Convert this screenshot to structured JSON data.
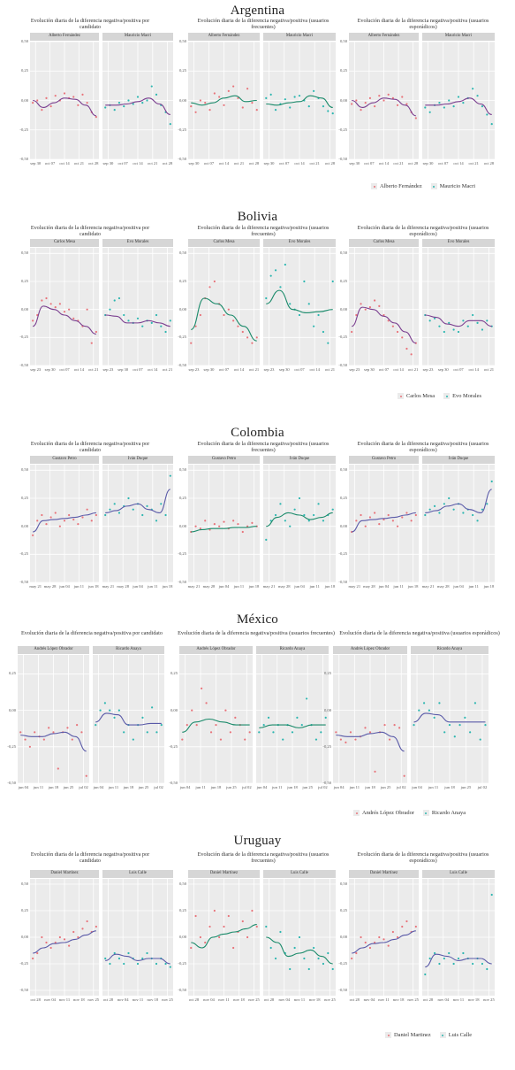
{
  "colors": {
    "red": "#e8737a",
    "teal": "#2cb6b0",
    "curve1": "#7a3e8f",
    "curve2": "#1a8a6a",
    "curve3": "#5a5aa8"
  },
  "chart_titles": {
    "por_candidato": "Evolución diaria de la diferencia negativa/positiva por candidato",
    "frecuentes": "Evolución diaria de la diferencia negativa/positiva (usuarios frecuentes)",
    "esporadicos": "Evolución diaria de la diferencia negativa/positiva (usuarios esporádicos)"
  },
  "chart_data": [
    {
      "country": "Argentina",
      "type": "scatter",
      "candidates": [
        "Alberto Fernández",
        "Mauricio Macri"
      ],
      "legend": [
        "Alberto Fernández",
        "Mauricio Macri"
      ],
      "x_ticks": [
        "sep 30",
        "oct 07",
        "oct 14",
        "oct 21",
        "oct 28"
      ],
      "y_ticks": [
        "0,50",
        "0,25",
        "0,00",
        "-0,25",
        "-0,50"
      ],
      "ylim": [
        -0.5,
        0.5
      ],
      "curve_colors": [
        "curve1",
        "curve2",
        "curve1"
      ],
      "series": [
        [
          [
            -0.02,
            0.0,
            -0.08,
            0.02,
            -0.05,
            0.04,
            0.0,
            0.06,
            0.02,
            0.03,
            -0.04,
            0.05,
            -0.02,
            -0.1,
            -0.14
          ],
          [
            -0.06,
            -0.04,
            -0.08,
            -0.02,
            -0.05,
            0.0,
            -0.03,
            0.03,
            -0.02,
            0.0,
            0.12,
            0.05,
            -0.04,
            -0.1,
            -0.2
          ]
        ],
        [
          [
            -0.05,
            -0.1,
            0.0,
            -0.02,
            -0.08,
            0.06,
            0.03,
            -0.04,
            0.08,
            0.12,
            0.02,
            -0.06,
            0.1,
            -0.02,
            -0.08
          ],
          [
            0.02,
            0.05,
            -0.08,
            -0.03,
            0.01,
            -0.06,
            0.03,
            0.04,
            0.0,
            -0.05,
            0.08,
            0.02,
            -0.05,
            -0.09,
            -0.11
          ]
        ],
        [
          [
            -0.03,
            0.0,
            -0.08,
            -0.02,
            0.02,
            -0.05,
            0.04,
            0.0,
            0.05,
            0.02,
            -0.04,
            0.03,
            -0.03,
            -0.1,
            -0.15
          ],
          [
            -0.06,
            -0.1,
            -0.04,
            -0.02,
            -0.06,
            0.0,
            -0.05,
            0.03,
            -0.02,
            0.02,
            0.1,
            0.04,
            -0.05,
            -0.12,
            -0.2
          ]
        ]
      ],
      "curves": [
        [
          [
            0.0,
            -0.06,
            -0.02,
            0.02,
            0.01,
            -0.04,
            -0.13
          ],
          [
            -0.04,
            -0.04,
            -0.03,
            -0.01,
            0.02,
            -0.03,
            -0.12
          ]
        ],
        [
          [
            -0.02,
            -0.04,
            -0.02,
            0.02,
            0.04,
            -0.01,
            0.0
          ],
          [
            -0.03,
            -0.04,
            -0.02,
            -0.01,
            0.04,
            0.02,
            -0.06
          ]
        ],
        [
          [
            0.0,
            -0.06,
            -0.02,
            0.02,
            0.01,
            -0.04,
            -0.13
          ],
          [
            -0.04,
            -0.04,
            -0.03,
            -0.01,
            0.02,
            -0.03,
            -0.12
          ]
        ]
      ]
    },
    {
      "country": "Bolivia",
      "type": "scatter",
      "candidates": [
        "Carlos Mesa",
        "Evo Morales"
      ],
      "legend": [
        "Carlos Mesa",
        "Evo Morales"
      ],
      "x_ticks": [
        "sep 23",
        "sep 30",
        "oct 07",
        "oct 14",
        "oct 21"
      ],
      "y_ticks": [
        "0,50",
        "0,25",
        "0,00",
        "-0,25",
        "-0,50"
      ],
      "ylim": [
        -0.5,
        0.55
      ],
      "curve_colors": [
        "curve1",
        "curve2",
        "curve1"
      ],
      "series": [
        [
          [
            -0.1,
            -0.05,
            0.08,
            0.1,
            0.05,
            0.02,
            0.05,
            -0.02,
            0.0,
            -0.08,
            -0.1,
            -0.15,
            0.0,
            -0.3,
            -0.2
          ],
          [
            -0.05,
            0.0,
            0.08,
            0.1,
            -0.05,
            -0.1,
            -0.12,
            -0.08,
            -0.15,
            -0.1,
            -0.12,
            -0.05,
            -0.15,
            -0.2,
            -0.1
          ]
        ],
        [
          [
            -0.3,
            -0.15,
            -0.05,
            0.1,
            0.2,
            0.25,
            0.05,
            -0.05,
            0.0,
            -0.1,
            -0.15,
            -0.2,
            -0.25,
            -0.3,
            -0.25
          ],
          [
            0.1,
            0.3,
            0.35,
            0.2,
            0.4,
            0.05,
            0.0,
            -0.05,
            0.25,
            0.05,
            -0.15,
            -0.05,
            -0.2,
            -0.3,
            0.25
          ]
        ],
        [
          [
            -0.2,
            -0.05,
            0.05,
            0.0,
            0.02,
            0.08,
            0.03,
            -0.05,
            -0.1,
            -0.15,
            -0.2,
            -0.25,
            -0.35,
            -0.4,
            -0.3
          ],
          [
            -0.05,
            -0.1,
            -0.08,
            -0.15,
            -0.2,
            -0.12,
            -0.18,
            -0.2,
            -0.1,
            -0.15,
            -0.05,
            -0.12,
            -0.18,
            -0.1,
            -0.15
          ]
        ]
      ],
      "curves": [
        [
          [
            -0.15,
            0.03,
            0.0,
            -0.05,
            -0.1,
            -0.15,
            -0.22
          ],
          [
            -0.05,
            -0.06,
            -0.12,
            -0.12,
            -0.1,
            -0.12,
            -0.15
          ]
        ],
        [
          [
            -0.18,
            0.1,
            0.05,
            -0.05,
            -0.15,
            -0.28
          ],
          [
            0.05,
            0.17,
            0.0,
            -0.03,
            -0.02,
            0.0
          ]
        ],
        [
          [
            -0.15,
            0.02,
            0.0,
            -0.06,
            -0.12,
            -0.2,
            -0.3
          ],
          [
            -0.05,
            -0.07,
            -0.13,
            -0.15,
            -0.1,
            -0.1,
            -0.15
          ]
        ]
      ]
    },
    {
      "country": "Colombia",
      "type": "scatter",
      "candidates": [
        "Gustavo Petro",
        "Iván Duque"
      ],
      "legend": [],
      "x_ticks": [
        "may 21",
        "may 28",
        "jun 04",
        "jun 11",
        "jun 18"
      ],
      "y_ticks": [
        "0,50",
        "0,25",
        "0,00",
        "-0,25",
        "-0,50"
      ],
      "ylim": [
        -0.5,
        0.55
      ],
      "curve_colors": [
        "curve3",
        "curve2",
        "curve3"
      ],
      "series": [
        [
          [
            -0.08,
            0.05,
            0.1,
            0.02,
            0.08,
            0.12,
            0.0,
            0.05,
            0.1,
            0.06,
            0.02,
            0.08,
            0.15,
            0.05,
            0.1
          ],
          [
            0.1,
            0.15,
            0.2,
            0.12,
            0.18,
            0.25,
            0.15,
            0.2,
            0.1,
            0.18,
            0.15,
            0.05,
            0.2,
            0.1,
            0.45
          ]
        ],
        [
          [
            -0.05,
            0.0,
            -0.02,
            0.05,
            -0.03,
            0.02,
            0.0,
            0.04,
            -0.02,
            0.05,
            0.02,
            -0.05,
            0.0,
            0.03,
            0.0
          ],
          [
            -0.12,
            0.05,
            0.1,
            0.2,
            0.05,
            0.0,
            0.15,
            0.25,
            0.1,
            0.05,
            0.1,
            0.2,
            0.05,
            0.1,
            0.15
          ]
        ],
        [
          [
            -0.05,
            0.05,
            0.1,
            0.0,
            0.08,
            0.12,
            0.02,
            0.06,
            0.1,
            0.05,
            0.0,
            0.08,
            0.12,
            0.05,
            0.1
          ],
          [
            0.1,
            0.15,
            0.18,
            0.12,
            0.2,
            0.25,
            0.15,
            0.2,
            0.12,
            0.15,
            0.1,
            0.05,
            0.15,
            0.2,
            0.4
          ]
        ]
      ],
      "curves": [
        [
          [
            -0.05,
            0.05,
            0.06,
            0.07,
            0.08,
            0.1,
            0.12
          ],
          [
            0.12,
            0.14,
            0.18,
            0.2,
            0.15,
            0.12,
            0.33
          ]
        ],
        [
          [
            -0.05,
            -0.03,
            -0.02,
            -0.02,
            -0.01,
            -0.01,
            0.0
          ],
          [
            0.0,
            0.08,
            0.12,
            0.1,
            0.06,
            0.08,
            0.12
          ]
        ],
        [
          [
            -0.05,
            0.05,
            0.06,
            0.07,
            0.08,
            0.1,
            0.12
          ],
          [
            0.12,
            0.14,
            0.18,
            0.2,
            0.15,
            0.12,
            0.33
          ]
        ]
      ]
    },
    {
      "country": "México",
      "type": "scatter",
      "candidates": [
        "Andrés López Obrador",
        "Ricardo Anaya"
      ],
      "legend": [
        "Andrés López Obrador",
        "Ricardo Anaya"
      ],
      "x_ticks": [
        "jun 04",
        "jun 11",
        "jun 18",
        "jun 25",
        "jul 02"
      ],
      "y_ticks": [
        "0,25",
        "0,00",
        "-0,25",
        "-0,50"
      ],
      "ylim": [
        -0.5,
        0.38
      ],
      "curve_colors": [
        "curve3",
        "curve2",
        "curve3"
      ],
      "series": [
        [
          [
            -0.15,
            -0.2,
            -0.25,
            -0.15,
            -0.18,
            -0.2,
            -0.12,
            -0.15,
            -0.4,
            -0.15,
            -0.12,
            -0.2,
            -0.1,
            -0.15,
            -0.45
          ],
          [
            -0.1,
            0.0,
            0.05,
            0.0,
            -0.05,
            0.0,
            -0.15,
            -0.1,
            -0.2,
            -0.1,
            -0.05,
            -0.15,
            0.02,
            -0.15,
            -0.1
          ]
        ],
        [
          [
            -0.2,
            -0.1,
            0.0,
            -0.1,
            0.15,
            0.05,
            -0.15,
            -0.1,
            -0.2,
            0.0,
            -0.15,
            -0.05,
            -0.1,
            -0.2,
            -0.15
          ],
          [
            -0.15,
            -0.1,
            -0.05,
            -0.15,
            -0.1,
            -0.2,
            -0.1,
            -0.15,
            -0.05,
            -0.1,
            0.08,
            -0.1,
            -0.2,
            -0.15,
            -0.05
          ]
        ],
        [
          [
            -0.15,
            -0.2,
            -0.22,
            -0.15,
            -0.2,
            -0.18,
            -0.12,
            -0.15,
            -0.42,
            -0.15,
            -0.1,
            -0.2,
            -0.1,
            -0.12,
            -0.45
          ],
          [
            -0.1,
            0.0,
            0.05,
            0.0,
            -0.05,
            0.05,
            -0.15,
            -0.1,
            -0.18,
            -0.1,
            -0.05,
            -0.15,
            0.05,
            -0.2,
            -0.1
          ]
        ]
      ],
      "curves": [
        [
          [
            -0.17,
            -0.18,
            -0.18,
            -0.16,
            -0.15,
            -0.18,
            -0.28
          ],
          [
            -0.08,
            -0.02,
            -0.03,
            -0.1,
            -0.1,
            -0.09,
            -0.09
          ]
        ],
        [
          [
            -0.15,
            -0.08,
            -0.06,
            -0.08,
            -0.1,
            -0.1
          ],
          [
            -0.12,
            -0.1,
            -0.1,
            -0.12,
            -0.1,
            -0.1
          ]
        ],
        [
          [
            -0.17,
            -0.18,
            -0.18,
            -0.16,
            -0.15,
            -0.18,
            -0.28
          ],
          [
            -0.08,
            -0.02,
            -0.03,
            -0.08,
            -0.08,
            -0.08,
            -0.08
          ]
        ]
      ]
    },
    {
      "country": "Uruguay",
      "type": "scatter",
      "candidates": [
        "Daniel Martínez",
        "Luis Calle"
      ],
      "legend": [
        "Daniel Martinez",
        "Luis Calle"
      ],
      "x_ticks": [
        "oct 28",
        "nov 04",
        "nov 11",
        "nov 18",
        "nov 25"
      ],
      "y_ticks": [
        "0,50",
        "0,25",
        "0,00",
        "-0,25",
        "-0,50"
      ],
      "ylim": [
        -0.55,
        0.55
      ],
      "curve_colors": [
        "curve3",
        "curve2",
        "curve3"
      ],
      "series": [
        [
          [
            -0.2,
            -0.15,
            0.0,
            -0.05,
            -0.1,
            -0.05,
            0.0,
            -0.02,
            -0.08,
            0.05,
            0.0,
            0.08,
            0.15,
            0.05,
            0.1
          ],
          [
            -0.2,
            -0.25,
            -0.15,
            -0.2,
            -0.25,
            -0.15,
            -0.2,
            -0.25,
            -0.2,
            -0.15,
            -0.2,
            -0.25,
            -0.2,
            -0.25,
            -0.28
          ]
        ],
        [
          [
            -0.1,
            0.2,
            0.0,
            -0.05,
            0.1,
            0.25,
            0.0,
            0.1,
            0.2,
            -0.1,
            0.05,
            0.15,
            0.0,
            0.25,
            0.1
          ],
          [
            0.1,
            -0.1,
            -0.2,
            0.05,
            -0.15,
            -0.3,
            -0.1,
            0.0,
            -0.2,
            -0.3,
            -0.1,
            -0.2,
            -0.25,
            -0.15,
            -0.3
          ]
        ],
        [
          [
            -0.2,
            -0.15,
            0.0,
            -0.05,
            -0.1,
            -0.05,
            0.0,
            -0.02,
            -0.08,
            0.05,
            0.0,
            0.1,
            0.15,
            0.05,
            0.1
          ],
          [
            -0.35,
            -0.2,
            -0.15,
            -0.25,
            -0.2,
            -0.15,
            -0.25,
            -0.2,
            -0.15,
            -0.2,
            -0.25,
            -0.2,
            -0.25,
            -0.3,
            0.4
          ]
        ]
      ],
      "curves": [
        [
          [
            -0.15,
            -0.1,
            -0.06,
            -0.05,
            -0.02,
            0.02,
            0.06
          ],
          [
            -0.22,
            -0.16,
            -0.18,
            -0.22,
            -0.2,
            -0.2,
            -0.25
          ]
        ],
        [
          [
            -0.05,
            -0.1,
            0.0,
            0.03,
            0.05,
            0.08,
            0.12
          ],
          [
            0.0,
            -0.05,
            -0.18,
            -0.15,
            -0.12,
            -0.18,
            -0.25
          ]
        ],
        [
          [
            -0.15,
            -0.1,
            -0.06,
            -0.05,
            -0.02,
            0.02,
            0.06
          ],
          [
            -0.28,
            -0.16,
            -0.18,
            -0.22,
            -0.2,
            -0.2,
            -0.25
          ]
        ]
      ]
    }
  ]
}
